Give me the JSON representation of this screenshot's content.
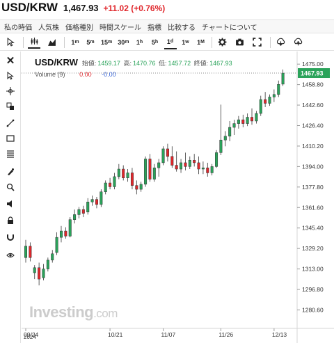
{
  "header": {
    "pair": "USD/KRW",
    "price": "1,467.93",
    "change": "+11.02 (+0.76%)"
  },
  "menu": [
    "私の時価",
    "人気株",
    "価格種別",
    "時間スケール",
    "指標",
    "比較する",
    "チャートについて"
  ],
  "timeframes": [
    {
      "label": "1",
      "sup": "m"
    },
    {
      "label": "5",
      "sup": "m"
    },
    {
      "label": "15",
      "sup": "m"
    },
    {
      "label": "30",
      "sup": "m"
    },
    {
      "label": "1",
      "sup": "h"
    },
    {
      "label": "5",
      "sup": "h"
    },
    {
      "label": "1",
      "sup": "d"
    },
    {
      "label": "1",
      "sup": "w"
    },
    {
      "label": "1",
      "sup": "M"
    }
  ],
  "toolbar_icons": [
    "candlestick-icon",
    "area-chart-icon",
    "gear-icon",
    "camera-icon",
    "fullscreen-icon",
    "download-icon",
    "cloud-upload-icon"
  ],
  "left_tools": [
    "close-icon",
    "cursor-icon",
    "crosshair-icon",
    "pattern-icon",
    "trendline-icon",
    "rectangle-icon",
    "fibonacci-icon",
    "brush-icon",
    "magnet-icon",
    "sound-icon",
    "lock-icon",
    "eye-icon"
  ],
  "legend": {
    "symbol": "USD/KRW",
    "open_label": "始値:",
    "open": "1459.17",
    "high_label": "高:",
    "high": "1470.76",
    "low_label": "低:",
    "low": "1457.72",
    "close_label": "終値:",
    "close": "1467.93"
  },
  "volume": {
    "label": "Volume",
    "period": "(9)",
    "v1": "0.00",
    "v2": "-0.00"
  },
  "watermark": {
    "brand": "Investing",
    "suffix": ".com"
  },
  "date_year": "2024",
  "colors": {
    "up": "#2aa35a",
    "down": "#e0262b",
    "price_tag": "#2aa35a"
  },
  "chart_data": {
    "type": "candlestick",
    "y_ticks": [
      "1475.00",
      "1458.80",
      "1442.60",
      "1426.40",
      "1410.20",
      "1394.00",
      "1377.80",
      "1361.60",
      "1345.40",
      "1329.20",
      "1313.00",
      "1296.80",
      "1280.60"
    ],
    "ylim": [
      1266,
      1485
    ],
    "x_ticks": [
      {
        "label": "09/24",
        "index": 0
      },
      {
        "label": "10/21",
        "index": 19
      },
      {
        "label": "11/07",
        "index": 31
      },
      {
        "label": "11/26",
        "index": 44
      },
      {
        "label": "12/13",
        "index": 56
      }
    ],
    "last_price": "1467.93",
    "candles": [
      {
        "o": 1322,
        "h": 1336,
        "l": 1318,
        "c": 1331
      },
      {
        "o": 1331,
        "h": 1334,
        "l": 1319,
        "c": 1322
      },
      {
        "o": 1310,
        "h": 1316,
        "l": 1305,
        "c": 1314
      },
      {
        "o": 1314,
        "h": 1318,
        "l": 1300,
        "c": 1305
      },
      {
        "o": 1306,
        "h": 1317,
        "l": 1304,
        "c": 1313
      },
      {
        "o": 1313,
        "h": 1322,
        "l": 1311,
        "c": 1320
      },
      {
        "o": 1320,
        "h": 1328,
        "l": 1318,
        "c": 1325
      },
      {
        "o": 1326,
        "h": 1342,
        "l": 1324,
        "c": 1338
      },
      {
        "o": 1338,
        "h": 1347,
        "l": 1334,
        "c": 1343
      },
      {
        "o": 1343,
        "h": 1346,
        "l": 1337,
        "c": 1339
      },
      {
        "o": 1339,
        "h": 1354,
        "l": 1338,
        "c": 1352
      },
      {
        "o": 1352,
        "h": 1360,
        "l": 1349,
        "c": 1356
      },
      {
        "o": 1356,
        "h": 1362,
        "l": 1353,
        "c": 1360
      },
      {
        "o": 1360,
        "h": 1363,
        "l": 1354,
        "c": 1357
      },
      {
        "o": 1358,
        "h": 1369,
        "l": 1356,
        "c": 1366
      },
      {
        "o": 1366,
        "h": 1371,
        "l": 1363,
        "c": 1368
      },
      {
        "o": 1368,
        "h": 1370,
        "l": 1361,
        "c": 1364
      },
      {
        "o": 1364,
        "h": 1376,
        "l": 1362,
        "c": 1374
      },
      {
        "o": 1374,
        "h": 1383,
        "l": 1372,
        "c": 1381
      },
      {
        "o": 1381,
        "h": 1385,
        "l": 1376,
        "c": 1378
      },
      {
        "o": 1378,
        "h": 1389,
        "l": 1376,
        "c": 1386
      },
      {
        "o": 1386,
        "h": 1396,
        "l": 1384,
        "c": 1392
      },
      {
        "o": 1392,
        "h": 1395,
        "l": 1383,
        "c": 1385
      },
      {
        "o": 1385,
        "h": 1392,
        "l": 1382,
        "c": 1389
      },
      {
        "o": 1389,
        "h": 1393,
        "l": 1376,
        "c": 1379
      },
      {
        "o": 1379,
        "h": 1383,
        "l": 1372,
        "c": 1376
      },
      {
        "o": 1376,
        "h": 1382,
        "l": 1374,
        "c": 1380
      },
      {
        "o": 1380,
        "h": 1402,
        "l": 1378,
        "c": 1400
      },
      {
        "o": 1400,
        "h": 1404,
        "l": 1382,
        "c": 1384
      },
      {
        "o": 1384,
        "h": 1396,
        "l": 1382,
        "c": 1393
      },
      {
        "o": 1393,
        "h": 1400,
        "l": 1386,
        "c": 1397
      },
      {
        "o": 1397,
        "h": 1410,
        "l": 1395,
        "c": 1408
      },
      {
        "o": 1408,
        "h": 1412,
        "l": 1398,
        "c": 1402
      },
      {
        "o": 1402,
        "h": 1410,
        "l": 1393,
        "c": 1395
      },
      {
        "o": 1395,
        "h": 1406,
        "l": 1390,
        "c": 1392
      },
      {
        "o": 1392,
        "h": 1400,
        "l": 1389,
        "c": 1397
      },
      {
        "o": 1397,
        "h": 1405,
        "l": 1391,
        "c": 1394
      },
      {
        "o": 1394,
        "h": 1402,
        "l": 1392,
        "c": 1399
      },
      {
        "o": 1399,
        "h": 1404,
        "l": 1394,
        "c": 1397
      },
      {
        "o": 1397,
        "h": 1402,
        "l": 1388,
        "c": 1392
      },
      {
        "o": 1392,
        "h": 1398,
        "l": 1388,
        "c": 1393
      },
      {
        "o": 1393,
        "h": 1397,
        "l": 1386,
        "c": 1389
      },
      {
        "o": 1389,
        "h": 1396,
        "l": 1387,
        "c": 1394
      },
      {
        "o": 1394,
        "h": 1407,
        "l": 1393,
        "c": 1405
      },
      {
        "o": 1405,
        "h": 1443,
        "l": 1403,
        "c": 1415
      },
      {
        "o": 1415,
        "h": 1422,
        "l": 1410,
        "c": 1418
      },
      {
        "o": 1418,
        "h": 1430,
        "l": 1414,
        "c": 1425
      },
      {
        "o": 1425,
        "h": 1431,
        "l": 1419,
        "c": 1428
      },
      {
        "o": 1428,
        "h": 1434,
        "l": 1424,
        "c": 1431
      },
      {
        "o": 1431,
        "h": 1435,
        "l": 1425,
        "c": 1428
      },
      {
        "o": 1428,
        "h": 1436,
        "l": 1426,
        "c": 1433
      },
      {
        "o": 1433,
        "h": 1440,
        "l": 1427,
        "c": 1430
      },
      {
        "o": 1430,
        "h": 1438,
        "l": 1428,
        "c": 1436
      },
      {
        "o": 1436,
        "h": 1450,
        "l": 1434,
        "c": 1447
      },
      {
        "o": 1447,
        "h": 1453,
        "l": 1441,
        "c": 1444
      },
      {
        "o": 1444,
        "h": 1451,
        "l": 1442,
        "c": 1449
      },
      {
        "o": 1449,
        "h": 1455,
        "l": 1445,
        "c": 1451
      },
      {
        "o": 1451,
        "h": 1462,
        "l": 1449,
        "c": 1459
      },
      {
        "o": 1459.17,
        "h": 1470.76,
        "l": 1457.72,
        "c": 1467.93
      }
    ]
  }
}
